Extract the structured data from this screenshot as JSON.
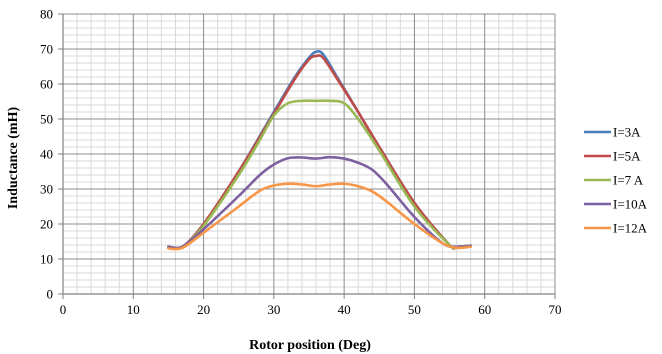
{
  "chart_data": {
    "type": "line",
    "title": "",
    "xlabel": "Rotor position (Deg)",
    "ylabel": "Inductance (mH)",
    "xlim": [
      0,
      70
    ],
    "ylim": [
      0,
      80
    ],
    "x_ticks": [
      0,
      10,
      20,
      30,
      40,
      50,
      60,
      70
    ],
    "y_ticks": [
      0,
      10,
      20,
      30,
      40,
      50,
      60,
      70,
      80
    ],
    "major_grid": true,
    "minor_grid": true,
    "legend_position": "right",
    "series": [
      {
        "name": "I=3A",
        "color": "#4a7ebb",
        "x": [
          15,
          17,
          20,
          25,
          30,
          33,
          35,
          36,
          37,
          39,
          42,
          45,
          50,
          55,
          56,
          58
        ],
        "y": [
          13.5,
          13.5,
          20,
          35,
          52,
          62,
          67.5,
          69.2,
          68.5,
          62,
          52,
          42,
          26,
          14,
          13.5,
          13.8
        ]
      },
      {
        "name": "I=5A",
        "color": "#be4b48",
        "x": [
          15,
          17,
          20,
          25,
          30,
          33,
          35,
          36,
          37,
          39,
          42,
          45,
          50,
          55,
          56,
          58
        ],
        "y": [
          13.5,
          13.5,
          20,
          35,
          51.5,
          61.5,
          67,
          68,
          67.5,
          61.5,
          52,
          42,
          26,
          14,
          13.5,
          13.8
        ]
      },
      {
        "name": "I=7 A",
        "color": "#98b954",
        "x": [
          15,
          17,
          20,
          25,
          28,
          30,
          32,
          34,
          36,
          38,
          40,
          42,
          45,
          50,
          55,
          56,
          58
        ],
        "y": [
          13.5,
          13.5,
          19.5,
          34,
          44,
          51,
          54.5,
          55.2,
          55.2,
          55.2,
          54.5,
          50,
          41,
          25,
          14,
          13.5,
          13.8
        ]
      },
      {
        "name": "I=10A",
        "color": "#7d60a0",
        "x": [
          15,
          17,
          20,
          25,
          28,
          30,
          32,
          34,
          36,
          38,
          40,
          42,
          44,
          46,
          50,
          54,
          56,
          58
        ],
        "y": [
          13.5,
          13.5,
          18.5,
          28,
          34,
          37,
          38.8,
          39,
          38.7,
          39.1,
          38.7,
          37.5,
          35.5,
          31.5,
          22,
          14.5,
          13.5,
          13.8
        ]
      },
      {
        "name": "I=12A",
        "color": "#f79646",
        "x": [
          15,
          17,
          20,
          25,
          28,
          30,
          32,
          34,
          36,
          38,
          40,
          42,
          44,
          46,
          50,
          54,
          56,
          58
        ],
        "y": [
          13,
          13.2,
          17.5,
          25,
          29.5,
          31,
          31.5,
          31.3,
          30.8,
          31.3,
          31.5,
          30.8,
          29.3,
          26.5,
          20,
          14.5,
          13.2,
          13.5
        ]
      }
    ]
  }
}
